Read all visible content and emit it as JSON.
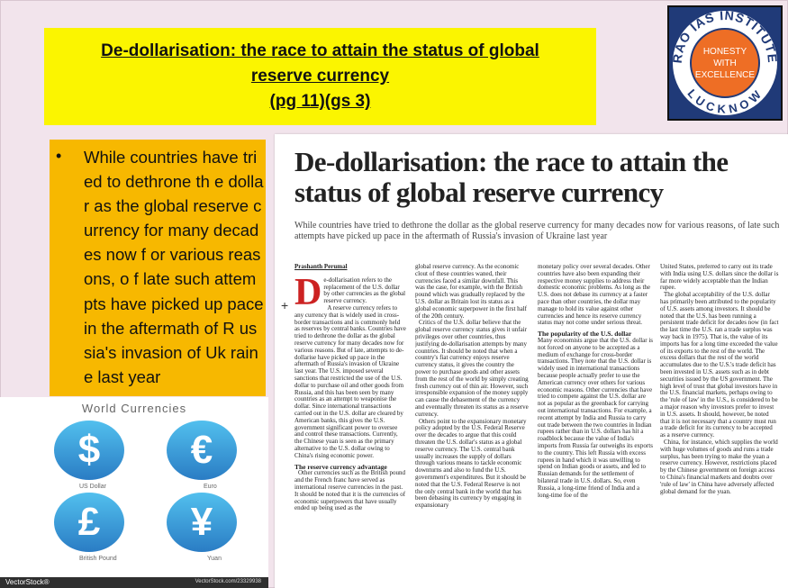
{
  "slide": {
    "title_line1": "De-dollarisation: the race to attain the status of global",
    "title_line2": "reserve currency",
    "title_line3": "(pg 11)(gs 3)"
  },
  "logo": {
    "arc_top": "RAO IAS INSTITUTE",
    "arc_bottom": "LUCKNOW",
    "line1": "HONESTY",
    "line2": "WITH",
    "line3": "EXCELLENCE",
    "bg_color": "#203a78",
    "circle_color": "#ee6e25"
  },
  "bullet": {
    "marker": "•",
    "text": "While countries have tried to dethrone th e dollar as the global reserve currency for many decades now f or various reasons, o f late such attempts have picked up pace in the aftermath of R ussia's invasion of Uk raine last year"
  },
  "currency_image": {
    "title": "World Currencies",
    "items": [
      {
        "symbol": "$",
        "label": "US Dollar"
      },
      {
        "symbol": "€",
        "label": "Euro"
      },
      {
        "symbol": "£",
        "label": "British Pound"
      },
      {
        "symbol": "¥",
        "label": "Yuan"
      }
    ],
    "brand": "VectorStock®",
    "stock_id": "VectorStock.com/23329938"
  },
  "article": {
    "headline": "De-dollarisation: the race to attain the status of global reserve currency",
    "standfirst": "While countries have tried to dethrone the dollar as the global reserve currency for many decades now for various reasons, of late such attempts have picked up pace in the aftermath of Russia's invasion of Ukraine last year",
    "byline": "Prashanth Perumal",
    "dropcap": "D",
    "col1_p1": "e-dollarisation refers to the replacement of the U.S. dollar by other currencies as the global reserve currency.",
    "col1_p2": "A reserve currency refers to any currency that is widely used in cross-border transactions and is commonly held as reserves by central banks. Countries have tried to dethrone the dollar as the global reserve currency for many decades now for various reasons. But of late, attempts to de-dollarise have picked up pace in the aftermath of Russia's invasion of Ukraine last year. The U.S. imposed several sanctions that restricted the use of the U.S. dollar to purchase oil and other goods from Russia, and this has been seen by many countries as an attempt to weaponise the dollar. Since international transactions carried out in the U.S. dollar are cleared by American banks, this gives the U.S. government significant power to oversee and control these transactions. Currently, the Chinese yuan is seen as the primary alternative to the U.S. dollar owing to China's rising economic power.",
    "col1_sub": "The reserve currency advantage",
    "col1_p3": "Other currencies such as the British pound and the French franc have served as international reserve currencies in the past. It should be noted that it is the currencies of economic superpowers that have usually ended up being used as the",
    "col2_p1": "global reserve currency. As the economic clout of these countries waned, their currencies faced a similar downfall. This was the case, for example, with the British pound which was gradually replaced by the U.S. dollar as Britain lost its status as a global economic superpower in the first half of the 20th century.",
    "col2_p2": "Critics of the U.S. dollar believe that the global reserve currency status gives it unfair privileges over other countries, thus justifying de-dollarisation attempts by many countries. It should be noted that when a country's fiat currency enjoys reserve currency status, it gives the country the power to purchase goods and other assets from the rest of the world by simply creating fresh currency out of thin air. However, such irresponsible expansion of the money supply can cause the debasement of the currency and eventually threaten its status as a reserve currency.",
    "col2_p3": "Others point to the expansionary monetary policy adopted by the U.S. Federal Reserve over the decades to argue that this could threaten the U.S. dollar's status as a global reserve currency. The U.S. central bank usually increases the supply of dollars through various means to tackle economic downturns and also to fund the U.S. government's expenditures. But it should be noted that the U.S. Federal Reserve is not the only central bank in the world that has been debasing its currency by engaging in expansionary",
    "col3_p1": "monetary policy over several decades. Other countries have also been expanding their respective money supplies to address their domestic economic problems. As long as the U.S. does not debase its currency at a faster pace than other countries, the dollar may manage to hold its value against other currencies and hence its reserve currency status may not come under serious threat.",
    "col3_sub": "The popularity of the U.S. dollar",
    "col3_p2": "Many economists argue that the U.S. dollar is not forced on anyone to be accepted as a medium of exchange for cross-border transactions. They note that the U.S. dollar is widely used in international transactions because people actually prefer to use the American currency over others for various economic reasons. Other currencies that have tried to compete against the U.S. dollar are not as popular as the greenback for carrying out international transactions. For example, a recent attempt by India and Russia to carry out trade between the two countries in Indian rupees rather than in U.S. dollars has hit a roadblock because the value of India's imports from Russia far outweighs its exports to the country. This left Russia with excess rupees in hand which it was unwilling to spend on Indian goods or assets, and led to Russian demands for the settlement of bilateral trade in U.S. dollars. So, even Russia, a long-time friend of India and a long-time foe of the",
    "col4_p1": "United States, preferred to carry out its trade with India using U.S. dollars since the dollar is far more widely acceptable than the Indian rupee.",
    "col4_p2": "The global acceptability of the U.S. dollar has primarily been attributed to the popularity of U.S. assets among investors. It should be noted that the U.S. has been running a persistent trade deficit for decades now (in fact the last time the U.S. ran a trade surplus was way back in 1975). That is, the value of its imports has for a long time exceeded the value of its exports to the rest of the world. The excess dollars that the rest of the world accumulates due to the U.S.'s trade deficit has been invested in U.S. assets such as in debt securities issued by the US government. The high level of trust that global investors have in the U.S. financial markets, perhaps owing to the 'rule of law' in the U.S., is considered to be a major reason why investors prefer to invest in U.S. assets. It should, however, be noted that it is not necessary that a country must run a trade deficit for its currency to be accepted as a reserve currency.",
    "col4_p3": "China, for instance, which supplies the world with huge volumes of goods and runs a trade surplus, has been trying to make the yuan a reserve currency. However, restrictions placed by the Chinese government on foreign access to China's financial markets and doubts over 'rule of law' in China have adversely affected global demand for the yuan."
  },
  "colors": {
    "slide_bg": "#f2e4ec",
    "title_bg": "#fbf500",
    "bullet_bg": "#f7b800",
    "bubble": "#3aa0dc",
    "dropcap": "#cc2222"
  }
}
